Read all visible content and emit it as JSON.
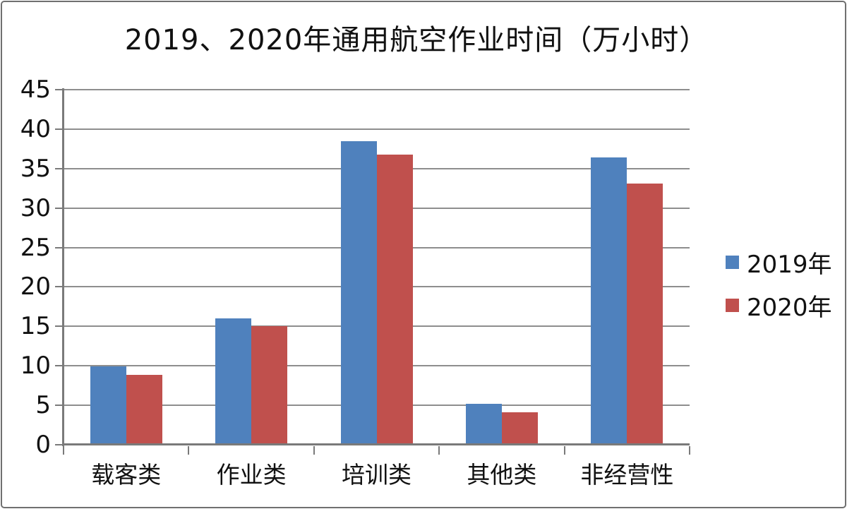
{
  "chart_data": {
    "type": "bar",
    "title": "2019、2020年通用航空作业时间（万小时）",
    "categories": [
      "载客类",
      "作业类",
      "培训类",
      "其他类",
      "非经营性"
    ],
    "series": [
      {
        "name": "2019年",
        "color": "#4F81BD",
        "values": [
          9.9,
          16.0,
          38.5,
          5.2,
          36.4
        ]
      },
      {
        "name": "2020年",
        "color": "#C0504D",
        "values": [
          8.9,
          15.0,
          36.8,
          4.1,
          33.1
        ]
      }
    ],
    "xlabel": "",
    "ylabel": "",
    "ylim": [
      0,
      45
    ],
    "ytick_step": 5,
    "yticks": [
      45,
      40,
      35,
      30,
      25,
      20,
      15,
      10,
      5,
      0
    ],
    "grid": true,
    "legend_position": "right",
    "legend_swatch_shape": "square"
  },
  "colors": {
    "grid": "#8e8e8e",
    "axis": "#7a7a7a",
    "text": "#111111",
    "frame_border": "#6f6f6f",
    "background": "#ffffff"
  }
}
